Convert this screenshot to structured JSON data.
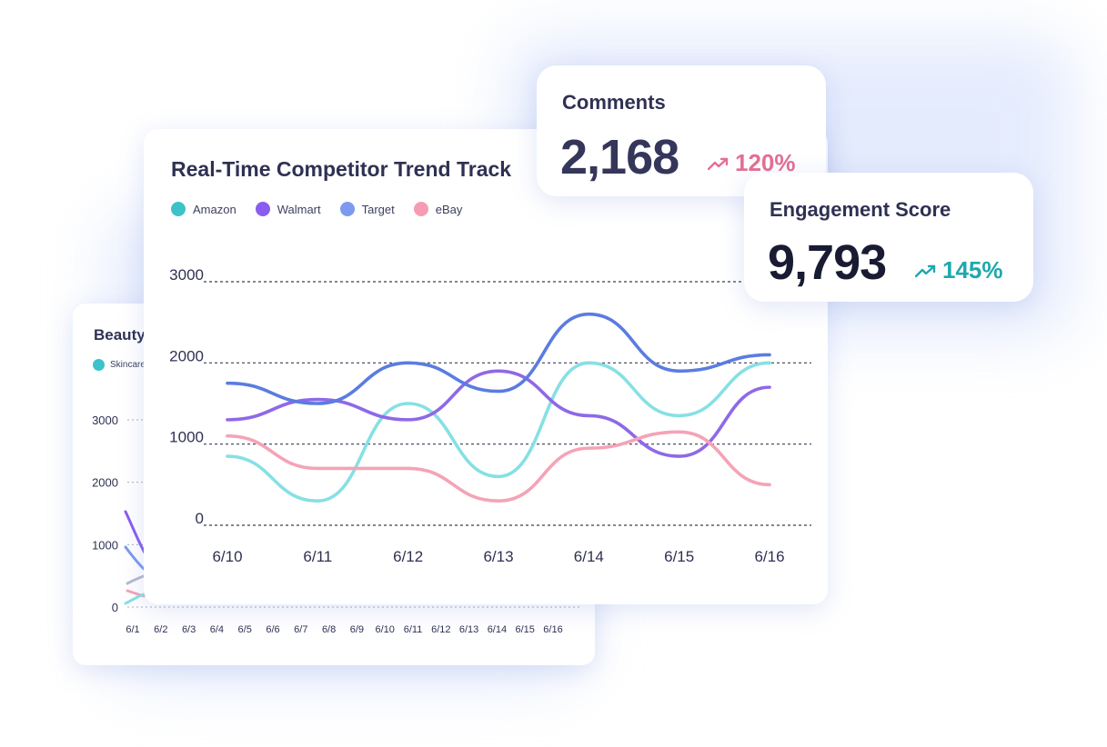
{
  "colors": {
    "amazon": "#86e0e4",
    "walmart": "#8f68e8",
    "target": "#5b7ce0",
    "ebay": "#f5a3b6",
    "amazon_dot": "#3cc3c9",
    "walmart_dot": "#8a5cf0",
    "target_dot": "#7b9af0",
    "ebay_dot": "#f59cb2",
    "comments_change": "#e56e92",
    "engagement_change": "#1fa8ae"
  },
  "comments": {
    "label": "Comments",
    "value": "2,168",
    "change": "120%",
    "trend_icon": "trend-up-icon"
  },
  "engagement": {
    "label": "Engagement Score",
    "value": "9,793",
    "change": "145%",
    "trend_icon": "trend-up-icon"
  },
  "beauty_card": {
    "title": "Beauty",
    "legend_visible": "Skincare",
    "y_ticks": [
      "3000",
      "2000",
      "1000",
      "0"
    ],
    "x_ticks": [
      "6/1",
      "6/2",
      "6/3",
      "6/4",
      "6/5",
      "6/6",
      "6/7",
      "6/8",
      "6/9",
      "6/10",
      "6/11",
      "6/12",
      "6/13",
      "6/14",
      "6/15",
      "6/16"
    ]
  },
  "chart_data": [
    {
      "type": "line",
      "title": "Real-Time Competitor Trend Track",
      "xlabel": "",
      "ylabel": "",
      "categories": [
        "6/10",
        "6/11",
        "6/12",
        "6/13",
        "6/14",
        "6/15",
        "6/16"
      ],
      "y_ticks": [
        "3000",
        "2000",
        "1000",
        "0"
      ],
      "ylim": [
        0,
        3000
      ],
      "grid": "horizontal dashed",
      "legend_position": "top-left",
      "series": [
        {
          "name": "Amazon",
          "color_key": "amazon",
          "values": [
            850,
            300,
            1500,
            600,
            2000,
            1350,
            2000
          ]
        },
        {
          "name": "Walmart",
          "color_key": "walmart",
          "values": [
            1300,
            1550,
            1300,
            1900,
            1350,
            850,
            1700
          ]
        },
        {
          "name": "Target",
          "color_key": "target",
          "values": [
            1750,
            1500,
            2000,
            1650,
            2600,
            1900,
            2100
          ]
        },
        {
          "name": "eBay",
          "color_key": "ebay",
          "values": [
            1100,
            700,
            700,
            300,
            950,
            1150,
            500
          ]
        }
      ]
    }
  ]
}
